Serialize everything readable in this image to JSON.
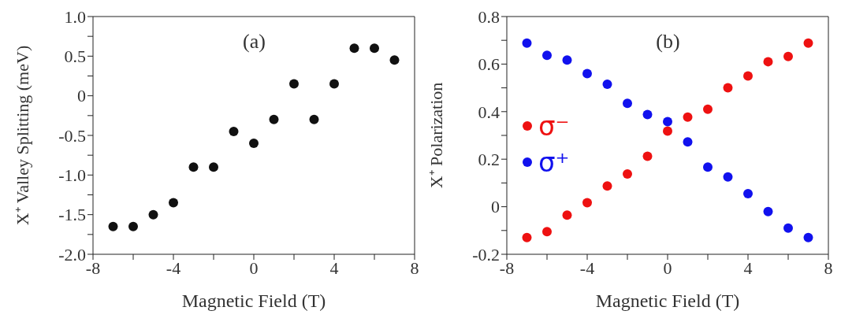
{
  "chart_data": [
    {
      "type": "scatter",
      "annotations": [
        "(a)"
      ],
      "xlabel": "Magnetic  Field (T)",
      "ylabel": "X⁺ Valley Splitting (meV)",
      "x": [
        -7,
        -6,
        -5,
        -4,
        -3,
        -2,
        -1,
        0,
        1,
        2,
        3,
        4,
        5,
        6,
        7
      ],
      "values": [
        -1.65,
        -1.65,
        -1.5,
        -1.35,
        -0.9,
        -0.9,
        -0.45,
        -0.6,
        -0.3,
        0.15,
        -0.3,
        0.15,
        0.6,
        0.6,
        0.45
      ],
      "color": "#111111",
      "marker": "circle",
      "xlim": [
        -8,
        8
      ],
      "xticks": [
        -8,
        {
          "value": -6,
          "label": null
        },
        -4,
        {
          "value": -2,
          "label": null
        },
        0,
        {
          "value": 2,
          "label": null
        },
        4,
        {
          "value": 6,
          "label": null
        },
        8
      ],
      "ylim": [
        -2,
        1
      ],
      "yticks": [
        {
          "value": -2,
          "label": "-2.0"
        },
        {
          "value": -1.75,
          "label": null
        },
        -1.5,
        {
          "value": -1.25,
          "label": null
        },
        {
          "value": -1,
          "label": "-1.0"
        },
        {
          "value": -0.75,
          "label": null
        },
        -0.5,
        {
          "value": -0.25,
          "label": null
        },
        0,
        {
          "value": 0.25,
          "label": null
        },
        0.5,
        {
          "value": 0.75,
          "label": null
        },
        {
          "value": 1,
          "label": "1.0"
        }
      ]
    },
    {
      "type": "scatter",
      "annotations": [
        "(b)"
      ],
      "xlabel": "Magnetic  Field (T)",
      "ylabel": "X⁺ Polarization",
      "x": [
        -7,
        -6,
        -5,
        -4,
        -3,
        -2,
        -1,
        0,
        1,
        2,
        3,
        4,
        5,
        6,
        7
      ],
      "marker": "circle",
      "legend": "left",
      "series": [
        {
          "name": "σ⁻",
          "color": "#ee1111",
          "values": [
            -0.13,
            -0.105,
            -0.035,
            0.017,
            0.087,
            0.138,
            0.212,
            0.318,
            0.377,
            0.41,
            0.5,
            0.55,
            0.61,
            0.632,
            0.688
          ]
        },
        {
          "name": "σ⁺",
          "color": "#1111ee",
          "values": [
            0.688,
            0.637,
            0.617,
            0.56,
            0.515,
            0.435,
            0.388,
            0.358,
            0.273,
            0.167,
            0.125,
            0.055,
            -0.02,
            -0.09,
            -0.13
          ]
        }
      ],
      "xlim": [
        -8,
        8
      ],
      "xticks": [
        -8,
        {
          "value": -6,
          "label": null
        },
        -4,
        {
          "value": -2,
          "label": null
        },
        0,
        {
          "value": 2,
          "label": null
        },
        4,
        {
          "value": 6,
          "label": null
        },
        8
      ],
      "ylim": [
        -0.2,
        0.8
      ],
      "yticks": [
        -0.2,
        {
          "value": -0.1,
          "label": null
        },
        0,
        {
          "value": 0.1,
          "label": null
        },
        0.2,
        {
          "value": 0.3,
          "label": null
        },
        0.4,
        {
          "value": 0.5,
          "label": null
        },
        0.6,
        {
          "value": 0.7,
          "label": null
        },
        0.8
      ]
    }
  ]
}
